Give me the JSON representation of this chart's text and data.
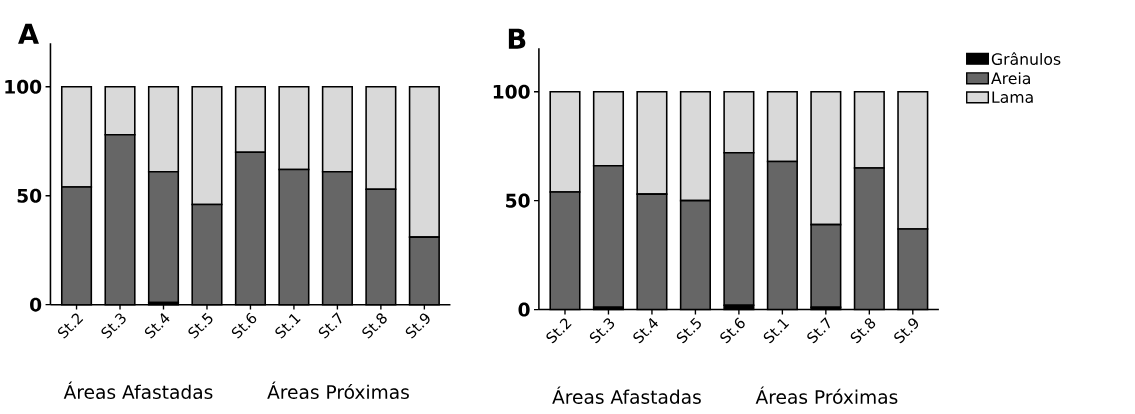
{
  "chart_data": [
    {
      "type": "bar",
      "title": "A",
      "stacked": true,
      "categories": [
        "St.2",
        "St.3",
        "St.4",
        "St.5",
        "St.6",
        "St.1",
        "St.7",
        "St.8",
        "St.9"
      ],
      "series": [
        {
          "color": "#000000",
          "values": [
            0,
            0,
            1,
            0,
            0,
            0,
            0,
            0,
            0
          ]
        },
        {
          "color": "#666666",
          "values": [
            54,
            78,
            60,
            46,
            70,
            62,
            61,
            53,
            31
          ]
        },
        {
          "color": "#d9d9d9",
          "values": [
            46,
            22,
            39,
            54,
            30,
            38,
            39,
            47,
            69
          ]
        }
      ],
      "ylim": [
        0,
        120
      ],
      "yticks": [
        0,
        50,
        100
      ],
      "annotations": [
        "Áreas Afastadas",
        "Áreas Próximas"
      ]
    },
    {
      "type": "bar",
      "title": "B",
      "stacked": true,
      "categories": [
        "St.2",
        "St.3",
        "St.4",
        "St.5",
        "St.6",
        "St.1",
        "St.7",
        "St.8",
        "St.9"
      ],
      "series": [
        {
          "name": "Grânulos",
          "color": "#000000",
          "values": [
            0,
            1,
            0,
            0,
            2,
            0,
            1,
            0,
            0
          ]
        },
        {
          "name": "Areia",
          "color": "#666666",
          "values": [
            54,
            65,
            53,
            50,
            70,
            68,
            38,
            65,
            37
          ]
        },
        {
          "name": "Lama",
          "color": "#d9d9d9",
          "values": [
            46,
            34,
            47,
            50,
            28,
            32,
            61,
            35,
            63
          ]
        }
      ],
      "ylim": [
        0,
        120
      ],
      "yticks": [
        0,
        50,
        100
      ],
      "legend": "right",
      "annotations": [
        "Áreas Afastadas",
        "Áreas Próximas"
      ]
    }
  ]
}
